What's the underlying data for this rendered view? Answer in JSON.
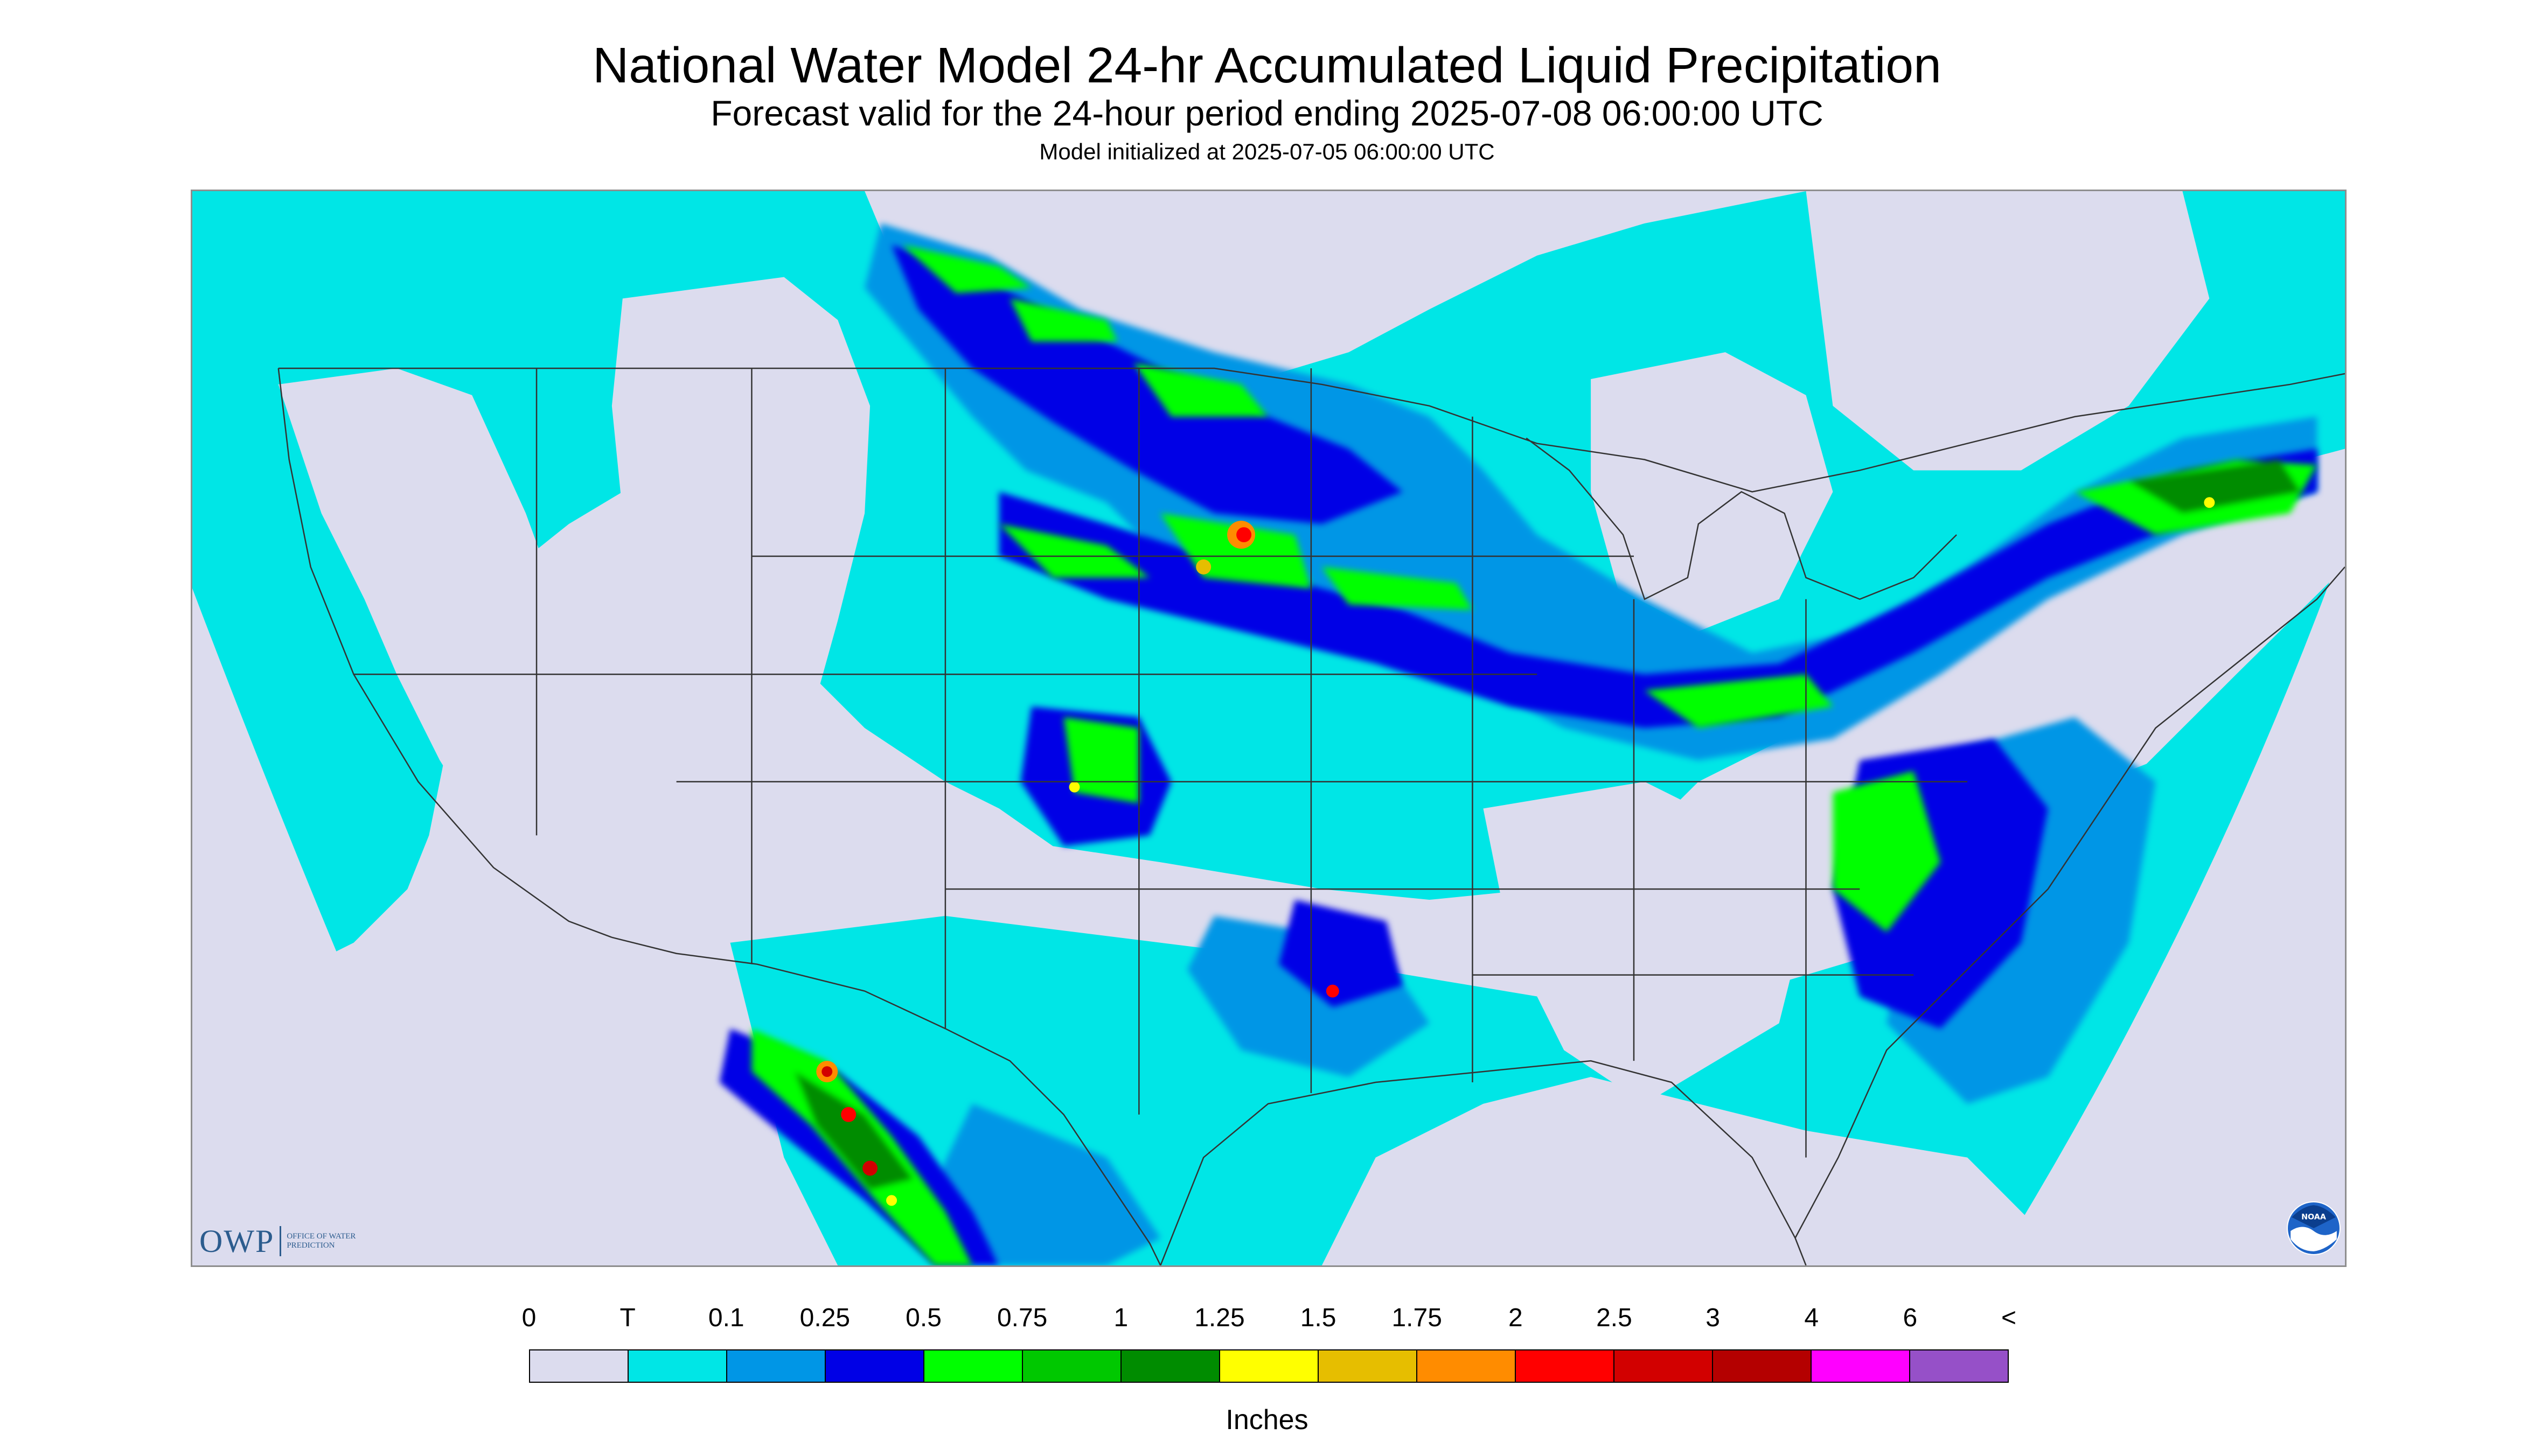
{
  "header": {
    "title": "National Water Model 24-hr Accumulated Liquid Precipitation",
    "subtitle": "Forecast valid for the 24-hour period ending 2025-07-08 06:00:00 UTC",
    "init": "Model initialized at 2025-07-05 06:00:00 UTC"
  },
  "map": {
    "background_color": "#dcdcee",
    "outside_domain_color": "#dcdcee",
    "boundary_color": "#333333",
    "icons": [
      "precipitation-map",
      "state-boundaries",
      "country-boundaries",
      "coastline"
    ]
  },
  "logos": {
    "owp_text": "OWP",
    "owp_subtext": "OFFICE OF WATER PREDICTION",
    "noaa_text": "NOAA"
  },
  "legend": {
    "labels": [
      "0",
      "T",
      "0.1",
      "0.25",
      "0.5",
      "0.75",
      "1",
      "1.25",
      "1.5",
      "1.75",
      "2",
      "2.5",
      "3",
      "4",
      "6",
      "<"
    ],
    "colors": [
      "#dcdcee",
      "#00e6e6",
      "#0096e6",
      "#0000e6",
      "#00ff00",
      "#00c800",
      "#008c00",
      "#ffff00",
      "#e6be00",
      "#ff8c00",
      "#ff0000",
      "#d20000",
      "#b40000",
      "#ff00ff",
      "#9650c8"
    ],
    "units": "Inches"
  }
}
